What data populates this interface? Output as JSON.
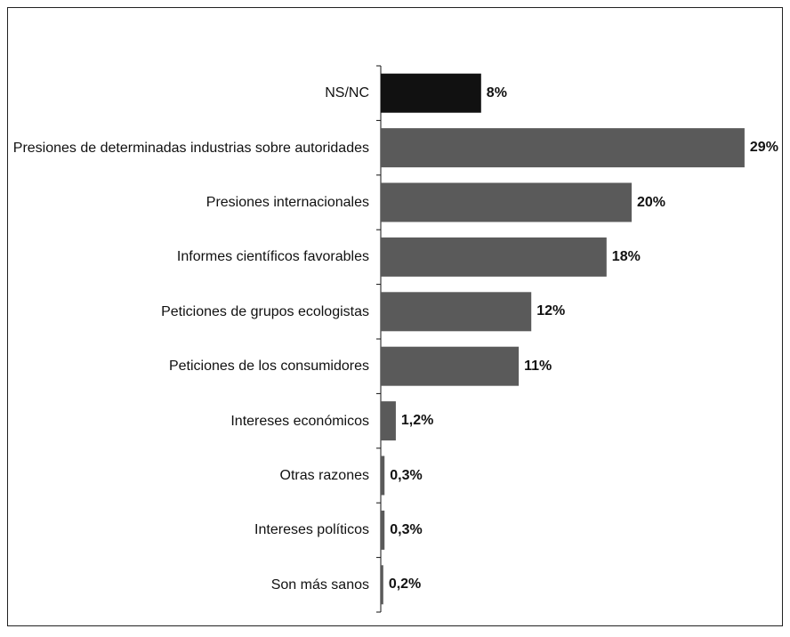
{
  "chart_data": {
    "type": "barh",
    "categories": [
      "NS/NC",
      "Presiones de determinadas industrias sobre autoridades",
      "Presiones internacionales",
      "Informes científicos favorables",
      "Peticiones de grupos ecologistas",
      "Peticiones de los consumidores",
      "Intereses económicos",
      "Otras razones",
      "Intereses políticos",
      "Son más sanos"
    ],
    "values": [
      8,
      29,
      20,
      18,
      12,
      11,
      1.2,
      0.3,
      0.3,
      0.2
    ],
    "value_labels": [
      "8%",
      "29%",
      "20%",
      "18%",
      "12%",
      "11%",
      "1,2%",
      "0,3%",
      "0,3%",
      "0,2%"
    ],
    "colors": [
      "#111111",
      "#5a5a5a",
      "#5a5a5a",
      "#5a5a5a",
      "#5a5a5a",
      "#5a5a5a",
      "#5a5a5a",
      "#5a5a5a",
      "#5a5a5a",
      "#5a5a5a"
    ]
  }
}
